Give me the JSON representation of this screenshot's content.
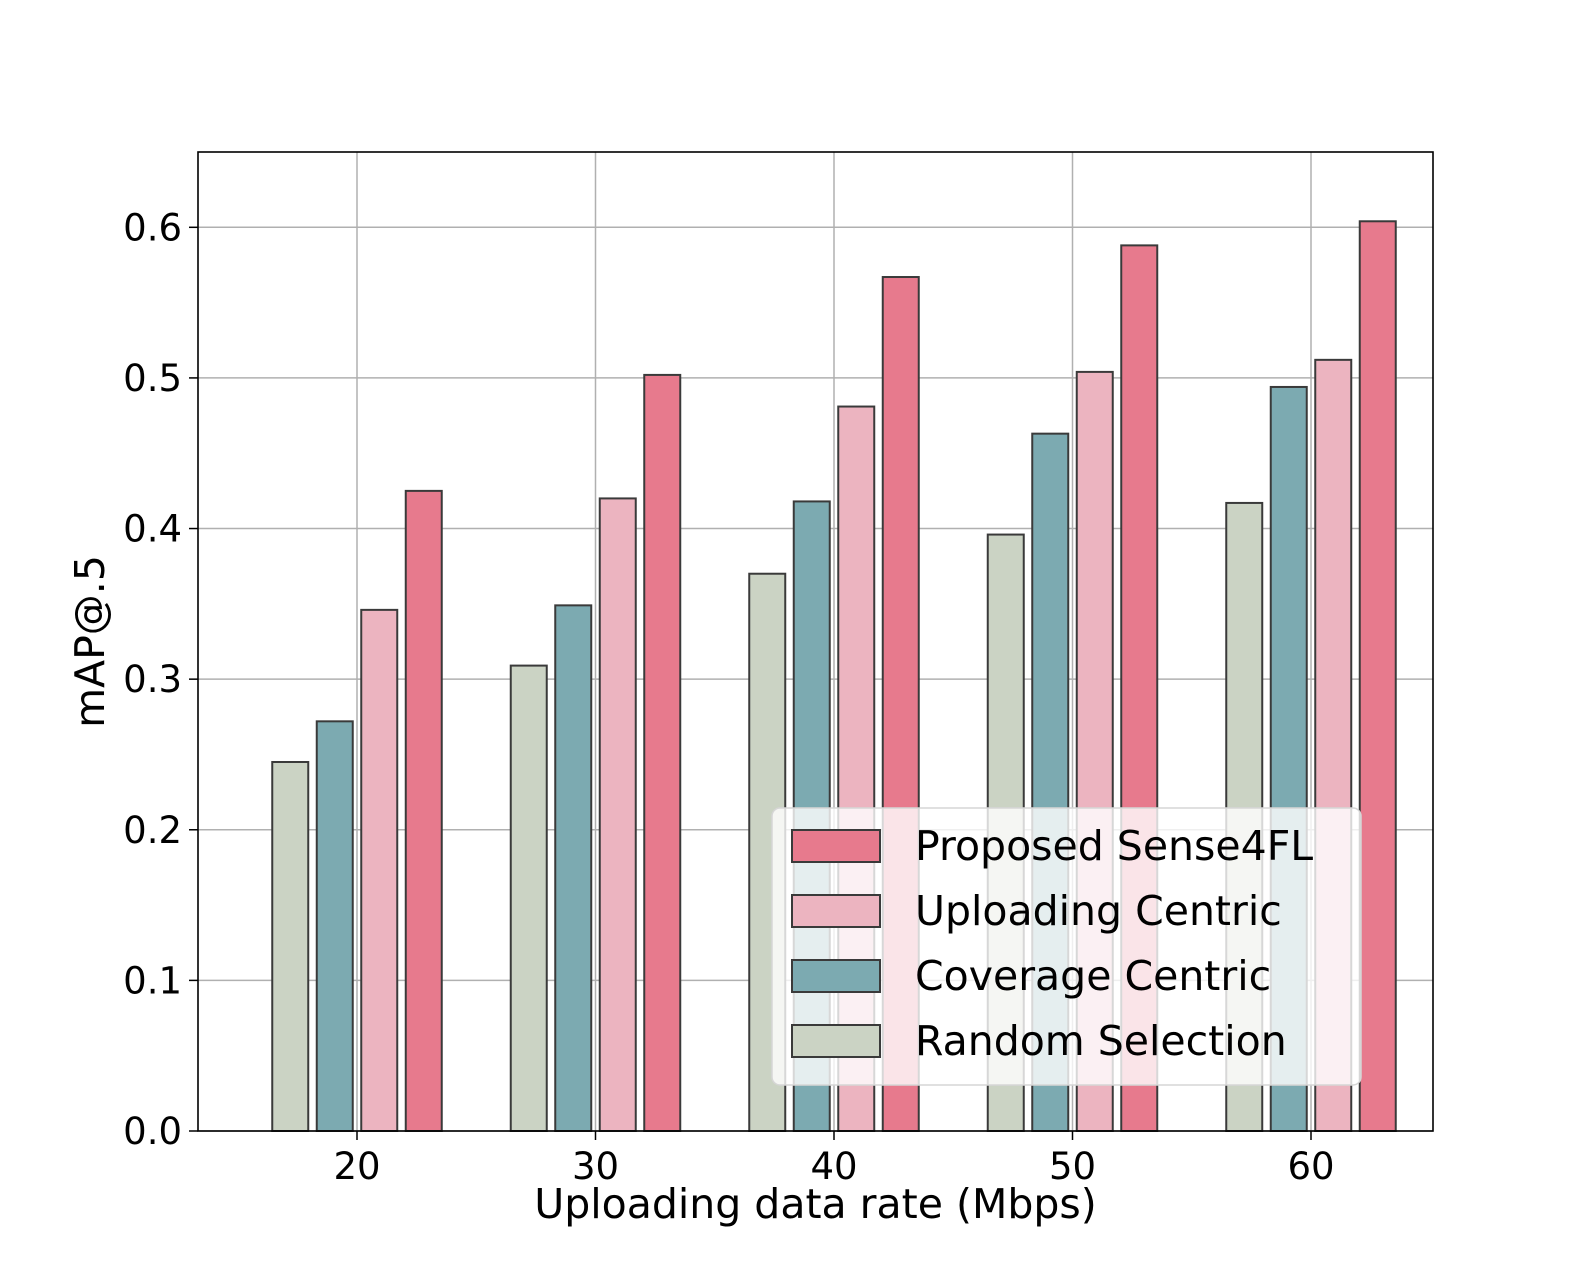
{
  "chart_data": {
    "type": "bar",
    "title": "",
    "xlabel": "Uploading data rate (Mbps)",
    "ylabel": "mAP@.5",
    "categories": [
      "20",
      "30",
      "40",
      "50",
      "60"
    ],
    "ylim": [
      0,
      0.65
    ],
    "yticks": [
      "0.0",
      "0.1",
      "0.2",
      "0.3",
      "0.4",
      "0.5",
      "0.6"
    ],
    "grid": true,
    "legend_position": "lower-right",
    "series": [
      {
        "name": "Random Selection",
        "color": "#cbd3c4",
        "values": [
          0.245,
          0.309,
          0.37,
          0.396,
          0.417
        ]
      },
      {
        "name": "Coverage Centric",
        "color": "#7caab1",
        "values": [
          0.272,
          0.349,
          0.418,
          0.463,
          0.494
        ]
      },
      {
        "name": "Uploading Centric",
        "color": "#ecb4c0",
        "values": [
          0.346,
          0.42,
          0.481,
          0.504,
          0.512
        ]
      },
      {
        "name": "Proposed Sense4FL",
        "color": "#e77a8d",
        "values": [
          0.425,
          0.502,
          0.567,
          0.588,
          0.604
        ]
      }
    ],
    "legend_order": [
      "Proposed Sense4FL",
      "Uploading Centric",
      "Coverage Centric",
      "Random Selection"
    ]
  }
}
